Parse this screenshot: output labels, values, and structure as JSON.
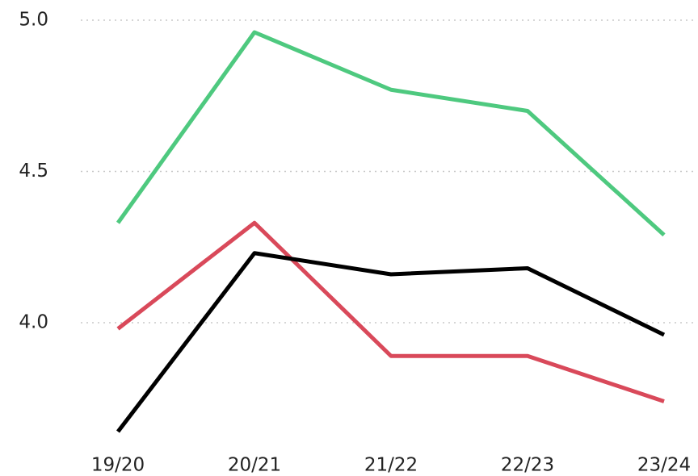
{
  "chart_data": {
    "type": "line",
    "categories": [
      "19/20",
      "20/21",
      "21/22",
      "22/23",
      "23/24"
    ],
    "series": [
      {
        "color": "#4ec97f",
        "values": [
          4.33,
          4.96,
          4.77,
          4.7,
          4.29
        ]
      },
      {
        "color": "#d9495a",
        "values": [
          3.98,
          4.33,
          3.89,
          3.89,
          3.74
        ]
      },
      {
        "color": "#000000",
        "values": [
          3.64,
          4.23,
          4.16,
          4.18,
          3.96
        ]
      }
    ],
    "ylim": [
      3.6,
      5.05
    ],
    "yticks": [
      {
        "value": 4,
        "label": "4.0"
      },
      {
        "value": 4.5,
        "label": "4.5"
      },
      {
        "value": 5,
        "label": "5.0"
      }
    ],
    "grid": true
  }
}
